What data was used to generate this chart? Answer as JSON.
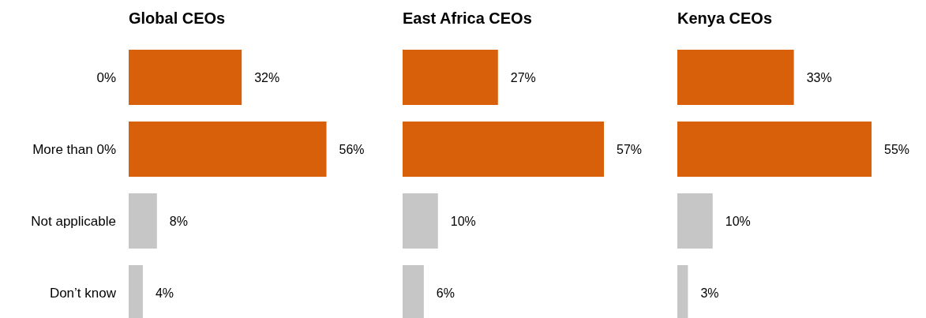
{
  "chart_data": [
    {
      "type": "bar",
      "orientation": "horizontal",
      "title": "Global CEOs",
      "categories": [
        "0%",
        "More than 0%",
        "Not applicable",
        "Don’t know"
      ],
      "values": [
        32,
        56,
        8,
        4
      ],
      "value_labels": [
        "32%",
        "56%",
        "8%",
        "4%"
      ],
      "colors": [
        "#d9600a",
        "#d9600a",
        "#c6c6c6",
        "#c6c6c6"
      ],
      "tick_labels": "y"
    },
    {
      "type": "bar",
      "orientation": "horizontal",
      "title": "East Africa CEOs",
      "categories": [
        null,
        null,
        null,
        null
      ],
      "values": [
        27,
        57,
        10,
        6
      ],
      "value_labels": [
        "27%",
        "57%",
        "10%",
        "6%"
      ],
      "colors": [
        "#d9600a",
        "#d9600a",
        "#c6c6c6",
        "#c6c6c6"
      ]
    },
    {
      "type": "bar",
      "orientation": "horizontal",
      "title": "Kenya CEOs",
      "categories": [
        null,
        null,
        null,
        null
      ],
      "values": [
        33,
        55,
        10,
        3
      ],
      "value_labels": [
        "33%",
        "55%",
        "10%",
        "3%"
      ],
      "colors": [
        "#d9600a",
        "#d9600a",
        "#c6c6c6",
        "#c6c6c6"
      ]
    }
  ]
}
